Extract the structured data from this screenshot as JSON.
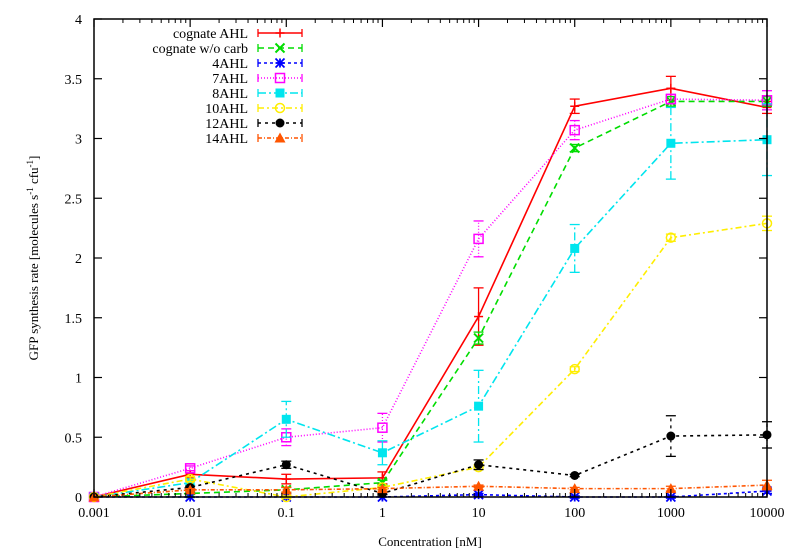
{
  "chart_data": {
    "type": "line",
    "title": "",
    "xlabel": "Concentration [nM]",
    "ylabel": "GFP synthesis rate [molecules s-1 cfu-1]",
    "ylabel_parts": {
      "main": "GFP synthesis rate [molecules s",
      "sup1": "-1",
      "mid": " cfu",
      "sup2": "-1",
      "end": "]"
    },
    "xscale": "log",
    "xlim": [
      0.001,
      10000
    ],
    "ylim": [
      0,
      4
    ],
    "grid": false,
    "legend_position": "upper-right-inside",
    "x": [
      0.001,
      0.01,
      0.1,
      1,
      10,
      100,
      1000,
      10000
    ],
    "x_tick_labels": [
      "0.001",
      "0.01",
      "0.1",
      "1",
      "10",
      "100",
      "1000",
      "10000"
    ],
    "y_ticks": [
      0,
      0.5,
      1,
      1.5,
      2,
      2.5,
      3,
      3.5,
      4
    ],
    "y_tick_labels": [
      "0",
      "0.5",
      "1",
      "1.5",
      "2",
      "2.5",
      "3",
      "3.5",
      "4"
    ],
    "series": [
      {
        "name": "cognate AHL",
        "color": "#ff0000",
        "dash": "",
        "marker": "plus",
        "values": [
          0,
          0.19,
          0.15,
          0.16,
          1.51,
          3.27,
          3.42,
          3.26
        ],
        "errors": [
          0,
          0.03,
          0.04,
          0.05,
          0.24,
          0.06,
          0.1,
          0.05
        ]
      },
      {
        "name": "cognate w/o carb",
        "color": "#00dd00",
        "dash": "6,4",
        "marker": "x",
        "values": [
          0,
          0.03,
          0.06,
          0.12,
          1.33,
          2.92,
          3.31,
          3.31
        ],
        "errors": [
          0,
          0.01,
          0.02,
          0.02,
          0.05,
          0.03,
          0.04,
          0.04
        ]
      },
      {
        "name": "4AHL",
        "color": "#0000ff",
        "dash": "3,3",
        "marker": "star",
        "values": [
          0,
          0,
          0,
          0,
          0.02,
          0,
          0,
          0.05
        ],
        "errors": [
          0,
          0,
          0,
          0,
          0.01,
          0.01,
          0.01,
          0.02
        ]
      },
      {
        "name": "7AHL",
        "color": "#ff00ff",
        "dash": "1,2",
        "marker": "open-square",
        "values": [
          0,
          0.24,
          0.5,
          0.58,
          2.16,
          3.07,
          3.33,
          3.32
        ],
        "errors": [
          0,
          0.02,
          0.07,
          0.12,
          0.15,
          0.08,
          0.04,
          0.08
        ]
      },
      {
        "name": "8AHL",
        "color": "#00e5ee",
        "dash": "8,3,2,3",
        "marker": "filled-square",
        "values": [
          0,
          0.12,
          0.65,
          0.37,
          0.76,
          2.08,
          2.96,
          2.99
        ],
        "errors": [
          0,
          0.02,
          0.15,
          0.1,
          0.3,
          0.2,
          0.3,
          0.3
        ]
      },
      {
        "name": "10AHL",
        "color": "#ffee00",
        "dash": "6,3,2,3",
        "marker": "open-circle",
        "values": [
          0,
          0.15,
          0,
          0.08,
          0.25,
          1.07,
          2.17,
          2.29
        ],
        "errors": [
          0,
          0.02,
          0.01,
          0.01,
          0.02,
          0.02,
          0.03,
          0.06
        ]
      },
      {
        "name": "12AHL",
        "color": "#000000",
        "dash": "3,4",
        "marker": "filled-circle",
        "values": [
          0,
          0.08,
          0.27,
          0.03,
          0.27,
          0.18,
          0.51,
          0.52
        ],
        "errors": [
          0,
          0.01,
          0.03,
          0.01,
          0.04,
          0.01,
          0.17,
          0.11
        ]
      },
      {
        "name": "14AHL",
        "color": "#ff5500",
        "dash": "4,2,1,2",
        "marker": "filled-triangle",
        "values": [
          0,
          0.06,
          0.06,
          0.07,
          0.09,
          0.07,
          0.07,
          0.1
        ],
        "errors": [
          0,
          0.01,
          0.02,
          0.01,
          0.01,
          0.01,
          0.02,
          0.04
        ]
      }
    ]
  }
}
